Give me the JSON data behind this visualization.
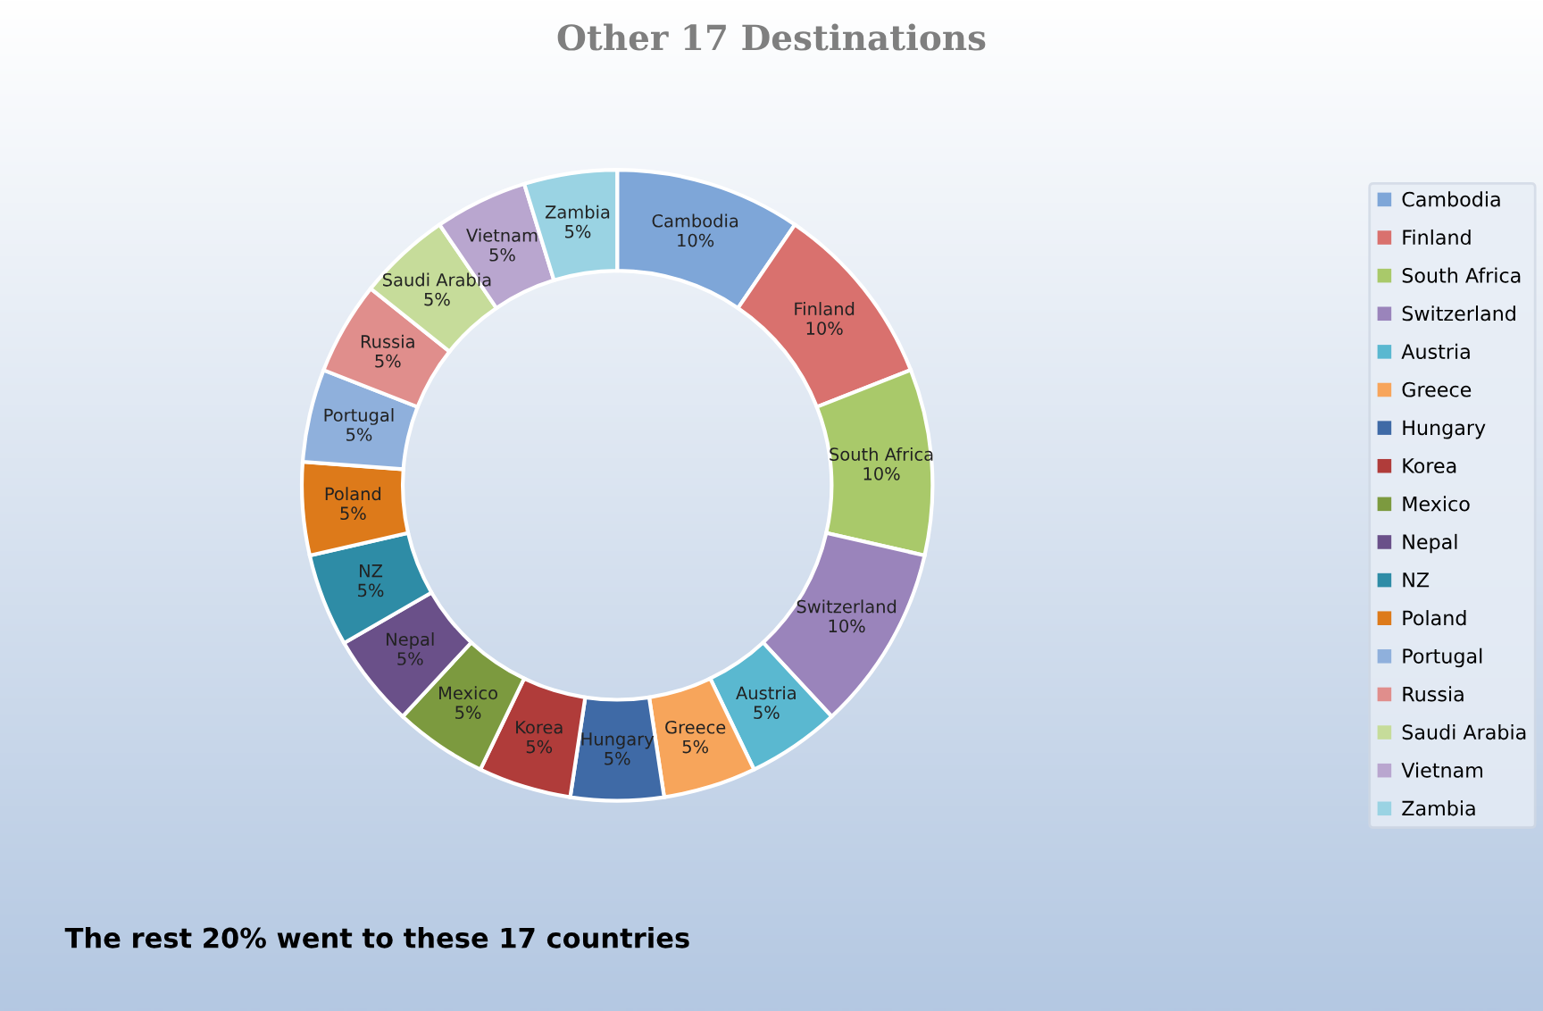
{
  "chart_data": {
    "type": "donut",
    "title": "Other 17 Destinations",
    "categories": [
      "Cambodia",
      "Finland",
      "South Africa",
      "Switzerland",
      "Austria",
      "Greece",
      "Hungary",
      "Korea",
      "Mexico",
      "Nepal",
      "NZ",
      "Poland",
      "Portugal",
      "Russia",
      "Saudi Arabia",
      "Vietnam",
      "Zambia"
    ],
    "values": [
      10,
      10,
      10,
      10,
      5,
      5,
      5,
      5,
      5,
      5,
      5,
      5,
      5,
      5,
      5,
      5,
      5
    ],
    "value_labels": [
      "10%",
      "10%",
      "10%",
      "10%",
      "5%",
      "5%",
      "5%",
      "5%",
      "5%",
      "5%",
      "5%",
      "5%",
      "5%",
      "5%",
      "5%",
      "5%",
      "5%"
    ],
    "colors": [
      "#7ea6d8",
      "#d9716e",
      "#a9c96a",
      "#9a84bb",
      "#5ab8d0",
      "#f7a55b",
      "#3f6aa6",
      "#b03c3a",
      "#7c9a3f",
      "#6a5089",
      "#2e8ca6",
      "#dd7a1a",
      "#8fb0dc",
      "#e08e8c",
      "#c6dc9a",
      "#b9a6cf",
      "#9ad3e3"
    ],
    "legend": "right",
    "annotations": [
      "The rest 20% went to these 17 countries"
    ]
  }
}
